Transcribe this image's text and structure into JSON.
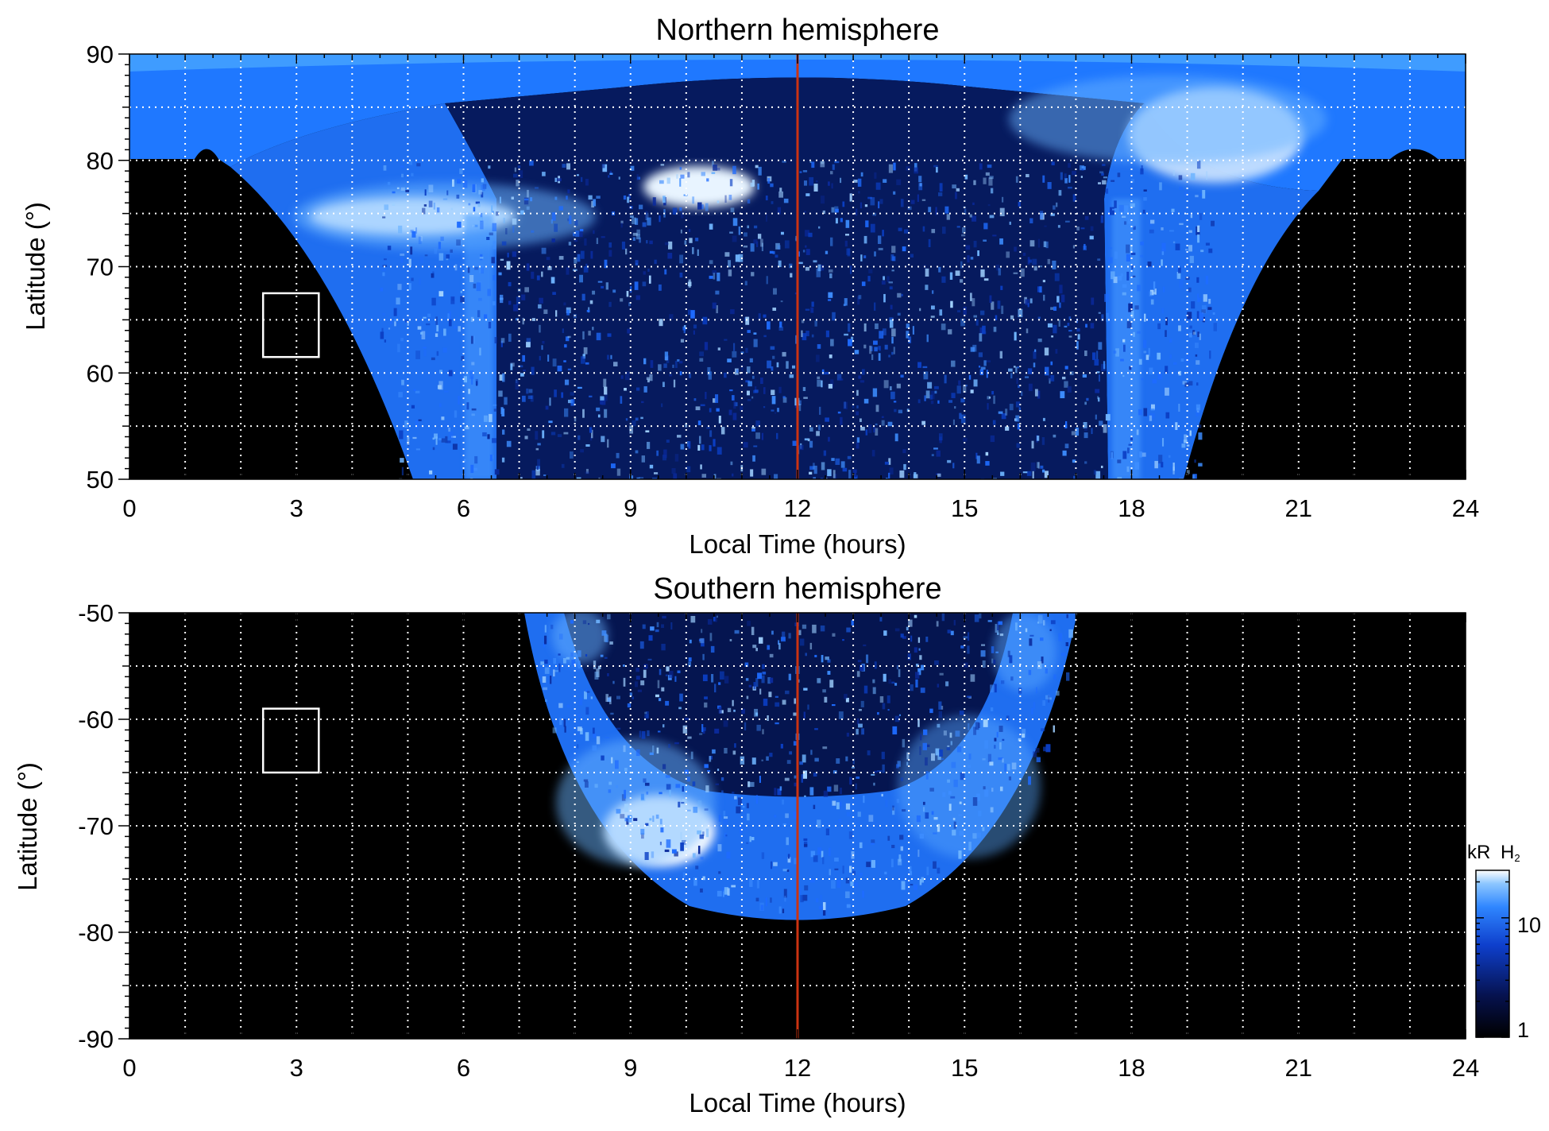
{
  "chart_data": [
    {
      "type": "heatmap",
      "title": "Northern hemisphere",
      "xlabel": "Local Time (hours)",
      "ylabel": "Latitude (°)",
      "xlim": [
        0,
        24
      ],
      "ylim": [
        50,
        90
      ],
      "xticks": [
        "0",
        "3",
        "6",
        "9",
        "12",
        "15",
        "18",
        "21",
        "24"
      ],
      "yticks": [
        "50",
        "60",
        "70",
        "80",
        "90"
      ],
      "grid": true,
      "noon_line_x": 12,
      "marker_box": {
        "x": [
          2.4,
          3.4
        ],
        "y": [
          61.5,
          67.5
        ]
      },
      "features": {
        "polar_cap_edge_lat": 80,
        "dawn_bright_band": {
          "x": [
            3.8,
            7
          ],
          "y": [
            73,
            77
          ]
        },
        "mid_morning_spot": {
          "x": [
            9.2,
            11
          ],
          "y": [
            76,
            79
          ]
        },
        "dusk_bright_band": {
          "x": [
            16.8,
            20
          ],
          "y": [
            76,
            86
          ]
        }
      }
    },
    {
      "type": "heatmap",
      "title": "Southern hemisphere",
      "xlabel": "Local Time (hours)",
      "ylabel": "Latitude (°)",
      "xlim": [
        0,
        24
      ],
      "ylim": [
        -90,
        -50
      ],
      "xticks": [
        "0",
        "3",
        "6",
        "9",
        "12",
        "15",
        "18",
        "21",
        "24"
      ],
      "yticks": [
        "-50",
        "-60",
        "-70",
        "-80",
        "-90"
      ],
      "grid": true,
      "noon_line_x": 12,
      "marker_box": {
        "x": [
          2.4,
          3.4
        ],
        "y": [
          -65,
          -59
        ]
      },
      "features": {
        "oval_span_x": [
          7.2,
          17
        ],
        "oval_bottom_lat": -78.5,
        "inner_edge_lat": -67.5,
        "bright_patch": {
          "x": [
            9.3,
            11
          ],
          "y": [
            -73,
            -68
          ]
        }
      }
    }
  ],
  "colorbar": {
    "label_main": "kR",
    "label_species": "H",
    "label_subscript": "2",
    "ticks": [
      "10",
      "1"
    ],
    "scale": "log",
    "range": [
      1,
      25
    ]
  },
  "colors": {
    "background": "#000000",
    "dim_blue": "#0a2a8c",
    "mid_blue": "#1c6cff",
    "bright_blue": "#6ab4ff",
    "saturated": "#ffffff",
    "noon_line": "#cc3311",
    "grid": "#ffffff"
  }
}
